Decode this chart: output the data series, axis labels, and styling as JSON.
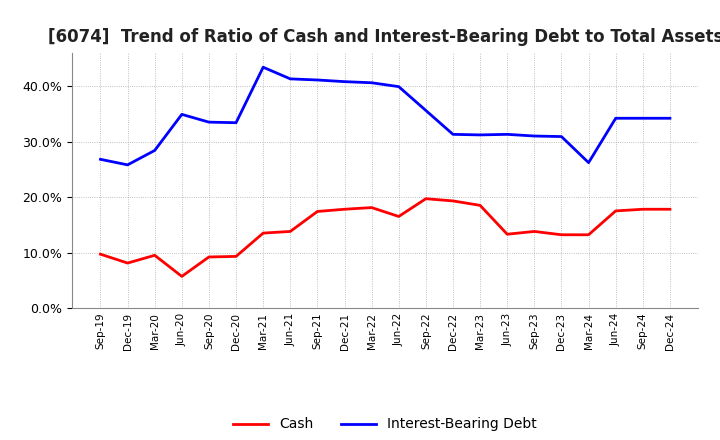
{
  "title": "[6074]  Trend of Ratio of Cash and Interest-Bearing Debt to Total Assets",
  "x_labels": [
    "Sep-19",
    "Dec-19",
    "Mar-20",
    "Jun-20",
    "Sep-20",
    "Dec-20",
    "Mar-21",
    "Jun-21",
    "Sep-21",
    "Dec-21",
    "Mar-22",
    "Jun-22",
    "Sep-22",
    "Dec-22",
    "Mar-23",
    "Jun-23",
    "Sep-23",
    "Dec-23",
    "Mar-24",
    "Jun-24",
    "Sep-24",
    "Dec-24"
  ],
  "cash": [
    0.097,
    0.081,
    0.095,
    0.057,
    0.092,
    0.093,
    0.135,
    0.138,
    0.174,
    0.178,
    0.181,
    0.165,
    0.197,
    0.193,
    0.185,
    0.133,
    0.138,
    0.132,
    0.132,
    0.175,
    0.178,
    0.178
  ],
  "interest_bearing_debt": [
    0.268,
    0.258,
    0.284,
    0.349,
    0.335,
    0.334,
    0.434,
    0.413,
    0.411,
    0.408,
    0.406,
    0.399,
    0.356,
    0.313,
    0.312,
    0.313,
    0.31,
    0.309,
    0.262,
    0.342,
    0.342,
    0.342
  ],
  "cash_color": "#ff0000",
  "debt_color": "#0000ff",
  "background_color": "#ffffff",
  "plot_bg_color": "#ffffff",
  "grid_color": "#999999",
  "ylim": [
    0.0,
    0.46
  ],
  "yticks": [
    0.0,
    0.1,
    0.2,
    0.3,
    0.4
  ],
  "legend_cash": "Cash",
  "legend_debt": "Interest-Bearing Debt",
  "title_fontsize": 12,
  "linewidth": 2.0
}
